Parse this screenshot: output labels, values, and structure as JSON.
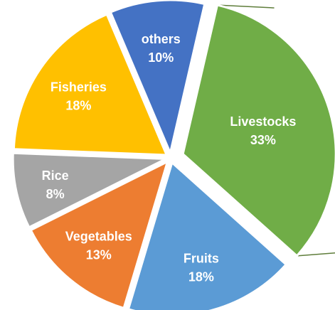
{
  "chart_data": {
    "type": "pie",
    "title": "",
    "slices": [
      {
        "label": "Livestocks",
        "value": 33,
        "value_label": "33%",
        "color": "#70AD47",
        "exploded": true
      },
      {
        "label": "Fruits",
        "value": 18,
        "value_label": "18%",
        "color": "#5B9BD5",
        "exploded": false
      },
      {
        "label": "Vegetables",
        "value": 13,
        "value_label": "13%",
        "color": "#ED7D31",
        "exploded": false
      },
      {
        "label": "Rice",
        "value": 8,
        "value_label": "8%",
        "color": "#A5A5A5",
        "exploded": false
      },
      {
        "label": "Fisheries",
        "value": 18,
        "value_label": "18%",
        "color": "#FFC000",
        "exploded": false
      },
      {
        "label": "others",
        "value": 10,
        "value_label": "10%",
        "color": "#4472C4",
        "exploded": false
      }
    ],
    "callout_line_color": "#5E7D3A"
  }
}
